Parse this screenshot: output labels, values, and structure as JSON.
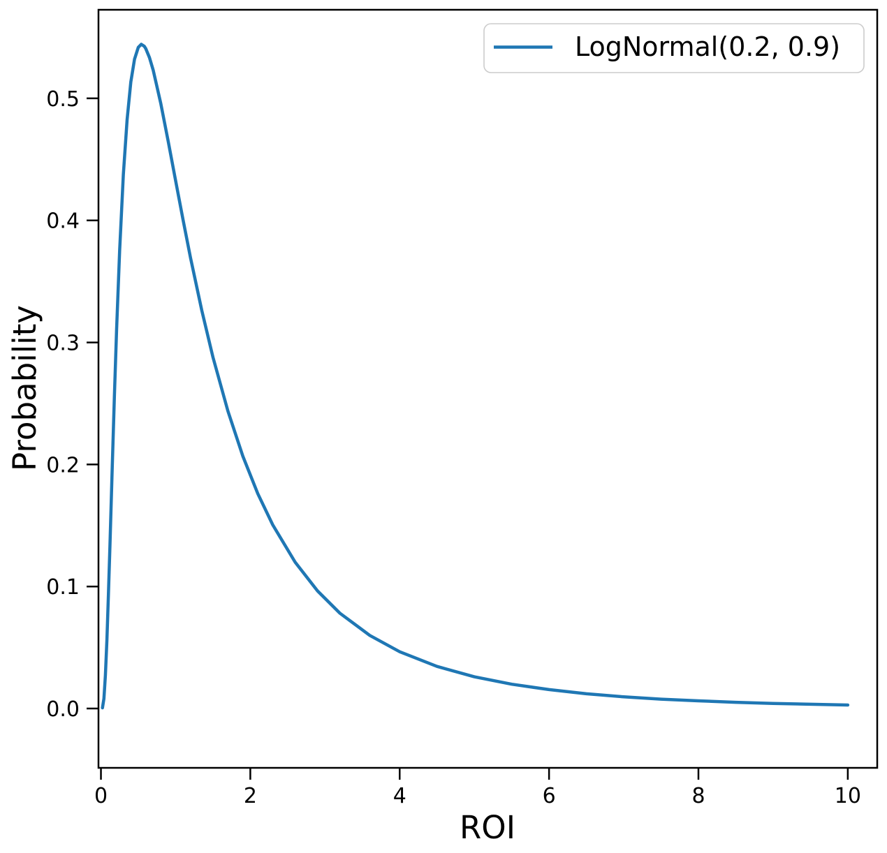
{
  "figure": {
    "background": "#ffffff",
    "spine_color": "#000000",
    "tick_color": "#000000",
    "text_color": "#000000"
  },
  "chart_data": {
    "type": "line",
    "title": "",
    "xlabel": "ROI",
    "ylabel": "Probability",
    "xlim": [
      -0.033,
      10.394
    ],
    "ylim": [
      -0.0486,
      0.5726
    ],
    "grid": false,
    "xticks": {
      "values": [
        0,
        2,
        4,
        6,
        8,
        10
      ],
      "labels": [
        "0",
        "2",
        "4",
        "6",
        "8",
        "10"
      ]
    },
    "yticks": {
      "values": [
        0.0,
        0.1,
        0.2,
        0.3,
        0.4,
        0.5
      ],
      "labels": [
        "0.0",
        "0.1",
        "0.2",
        "0.3",
        "0.4",
        "0.5"
      ]
    },
    "legend": {
      "position": "upper right",
      "border_color": "#cccccc",
      "background": "#ffffff"
    },
    "series": [
      {
        "name": "LogNormal(0.2, 0.9)",
        "color": "#1f77b4",
        "line_width": 4.5,
        "x": [
          0.02,
          0.04,
          0.06,
          0.08,
          0.1,
          0.12,
          0.15,
          0.18,
          0.21,
          0.25,
          0.3,
          0.35,
          0.4,
          0.45,
          0.5,
          0.54,
          0.58,
          0.6,
          0.65,
          0.7,
          0.8,
          0.9,
          1.0,
          1.1,
          1.2,
          1.35,
          1.5,
          1.7,
          1.9,
          2.1,
          2.3,
          2.6,
          2.9,
          3.2,
          3.6,
          4.0,
          4.5,
          5.0,
          5.5,
          6.0,
          6.5,
          7.0,
          7.5,
          8.0,
          8.5,
          9.0,
          9.5,
          10.0
        ],
        "y": [
          0.0006,
          0.0081,
          0.0272,
          0.0564,
          0.0928,
          0.133,
          0.1956,
          0.2561,
          0.3114,
          0.3752,
          0.4375,
          0.4826,
          0.5134,
          0.5321,
          0.5418,
          0.5443,
          0.5427,
          0.5408,
          0.5334,
          0.523,
          0.4961,
          0.4649,
          0.4324,
          0.4002,
          0.3693,
          0.3263,
          0.2879,
          0.2438,
          0.2068,
          0.1761,
          0.1505,
          0.1199,
          0.0964,
          0.0781,
          0.0599,
          0.0465,
          0.0345,
          0.026,
          0.0199,
          0.0155,
          0.0121,
          0.0096,
          0.0077,
          0.0063,
          0.0051,
          0.0042,
          0.0035,
          0.0029
        ]
      }
    ]
  }
}
